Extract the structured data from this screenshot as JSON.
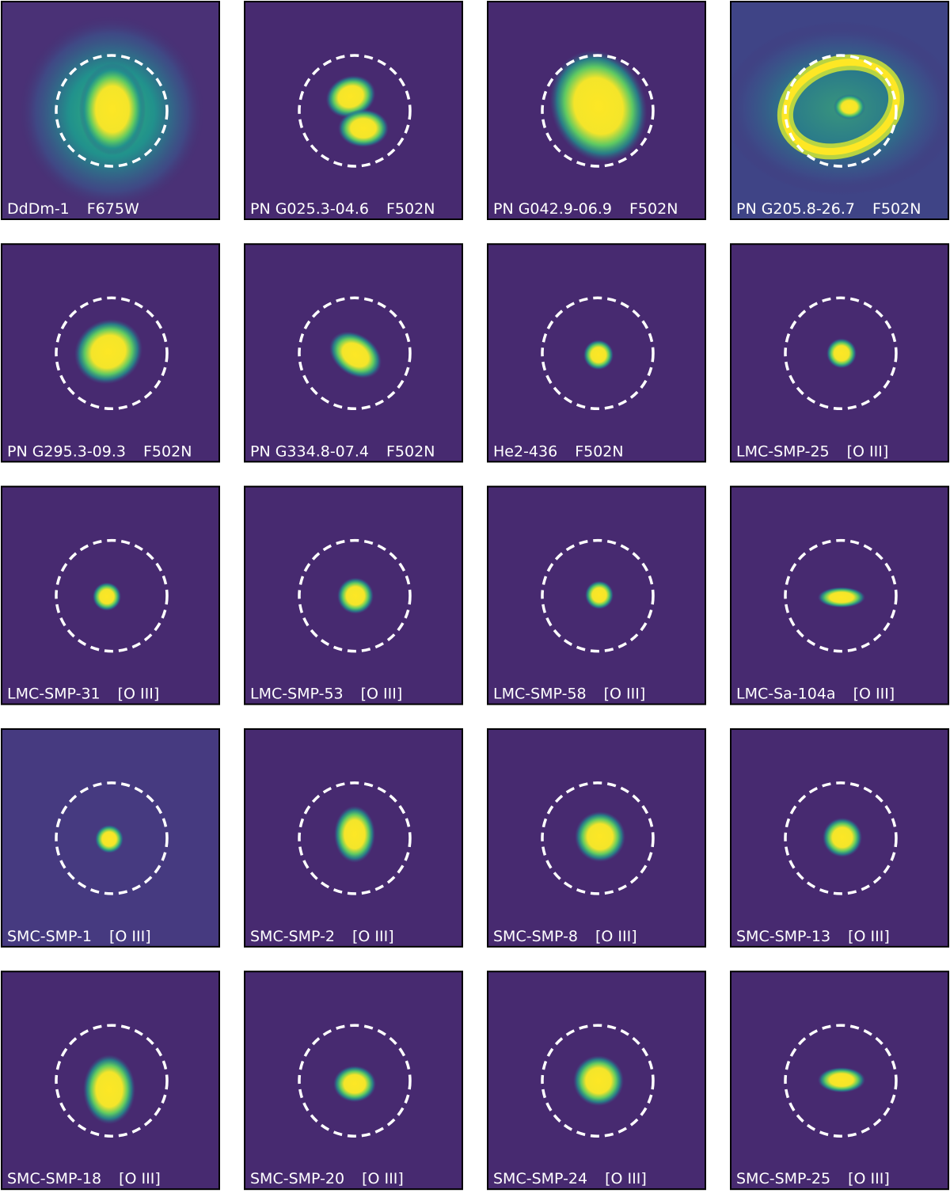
{
  "panels": [
    {
      "name": "DdDm-1",
      "filter": "F675W"
    },
    {
      "name": "PN G025.3-04.6",
      "filter": "F502N"
    },
    {
      "name": "PN G042.9-06.9",
      "filter": "F502N"
    },
    {
      "name": "PN G205.8-26.7",
      "filter": "F502N"
    },
    {
      "name": "PN G295.3-09.3",
      "filter": "F502N"
    },
    {
      "name": "PN G334.8-07.4",
      "filter": "F502N"
    },
    {
      "name": "He2-436",
      "filter": "F502N"
    },
    {
      "name": "LMC-SMP-25",
      "filter": "[O III]"
    },
    {
      "name": "LMC-SMP-31",
      "filter": "[O III]"
    },
    {
      "name": "LMC-SMP-53",
      "filter": "[O III]"
    },
    {
      "name": "LMC-SMP-58",
      "filter": "[O III]"
    },
    {
      "name": "LMC-Sa-104a",
      "filter": "[O III]"
    },
    {
      "name": "SMC-SMP-1",
      "filter": "[O III]"
    },
    {
      "name": "SMC-SMP-2",
      "filter": "[O III]"
    },
    {
      "name": "SMC-SMP-8",
      "filter": "[O III]"
    },
    {
      "name": "SMC-SMP-13",
      "filter": "[O III]"
    },
    {
      "name": "SMC-SMP-18",
      "filter": "[O III]"
    },
    {
      "name": "SMC-SMP-20",
      "filter": "[O III]"
    },
    {
      "name": "SMC-SMP-24",
      "filter": "[O III]"
    },
    {
      "name": "SMC-SMP-25",
      "filter": "[O III]"
    }
  ]
}
